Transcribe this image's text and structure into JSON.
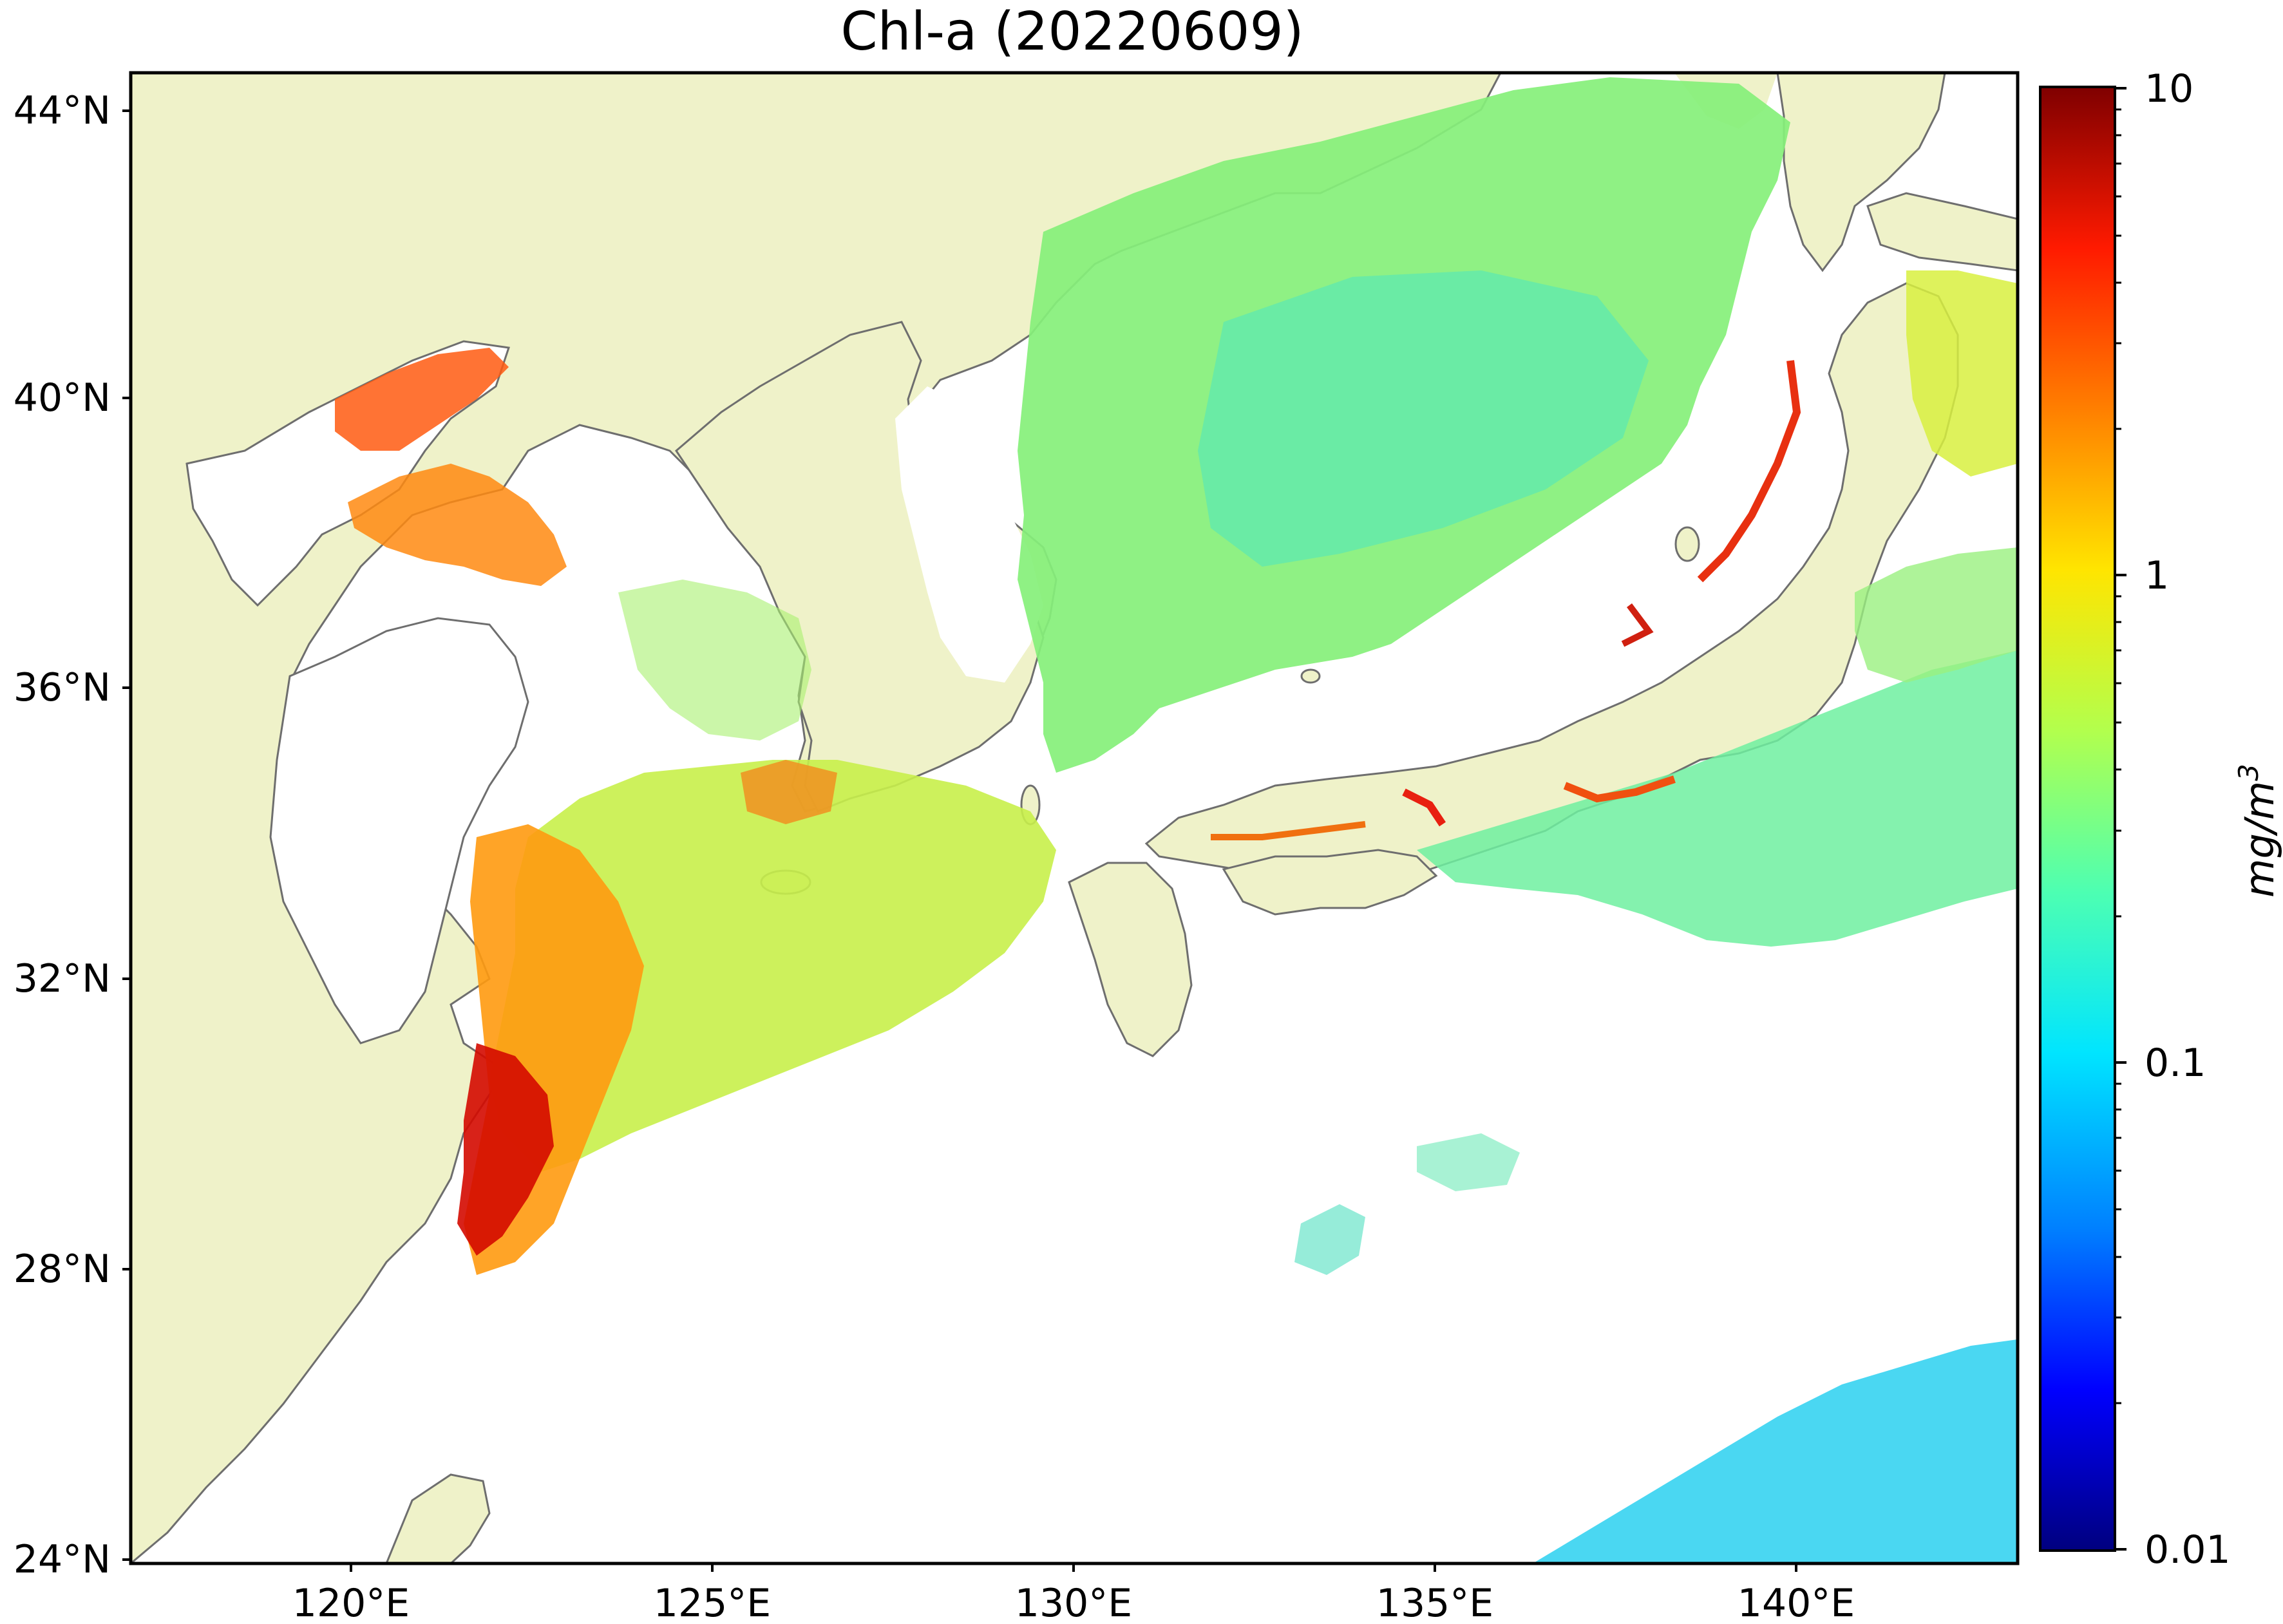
{
  "title": "Chl-a (20220609)",
  "map": {
    "lat_labels": [
      "44°N",
      "40°N",
      "36°N",
      "32°N",
      "28°N",
      "24°N"
    ],
    "lon_labels": [
      "120°E",
      "125°E",
      "130°E",
      "135°E",
      "140°E"
    ],
    "land_color": "#eff2c9",
    "coast_color": "#6e6e6e",
    "no_data_color": "#ffffff"
  },
  "colorbar": {
    "label": "mg/m",
    "label_superscript": "3",
    "ticks": [
      "10",
      "1",
      "0.1",
      "0.01"
    ],
    "scale": "log",
    "range": [
      0.01,
      10
    ],
    "colormap": [
      "#00007f",
      "#0000ff",
      "#0080ff",
      "#00e5ff",
      "#4dffb2",
      "#b2ff4d",
      "#ffe500",
      "#ff7f00",
      "#ff1a00",
      "#7f0000"
    ]
  }
}
